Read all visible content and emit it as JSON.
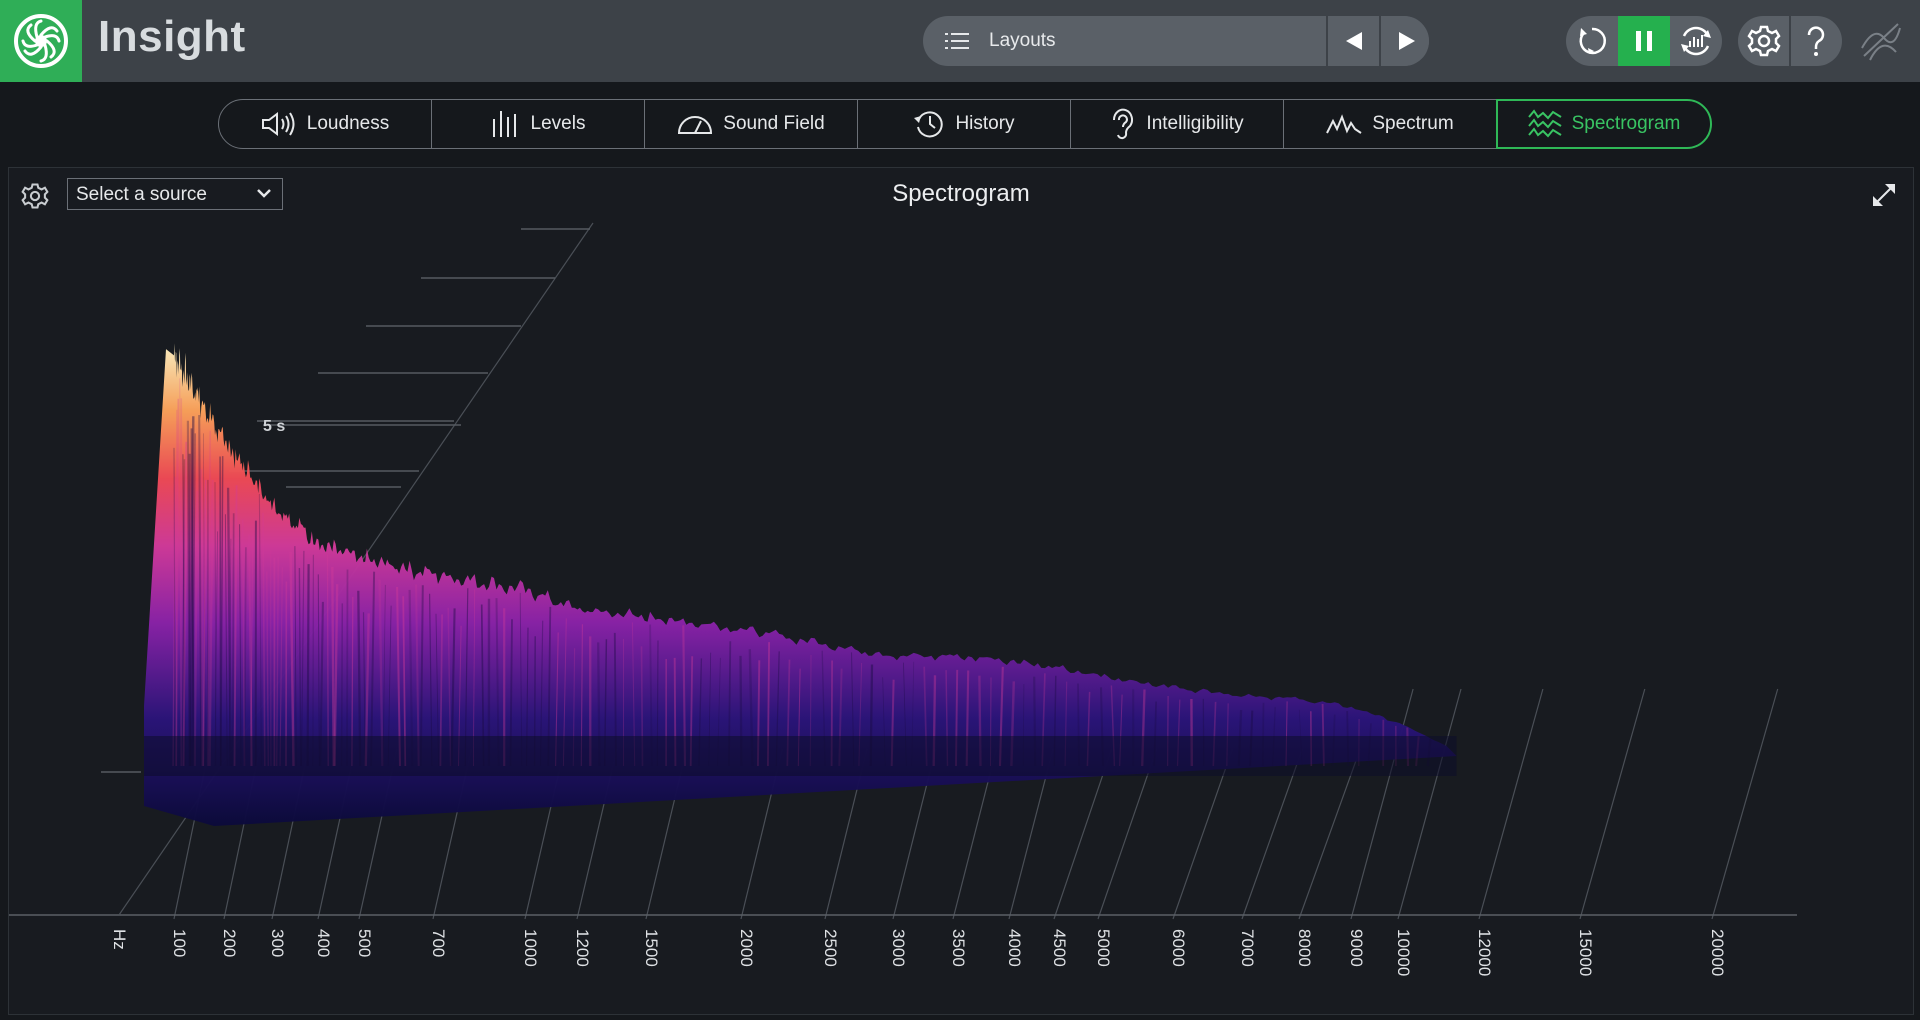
{
  "app": {
    "title": "Insight"
  },
  "layouts": {
    "label": "Layouts"
  },
  "tabs": [
    {
      "id": "loudness",
      "label": "Loudness",
      "icon": "speaker-icon"
    },
    {
      "id": "levels",
      "label": "Levels",
      "icon": "level-bars-icon"
    },
    {
      "id": "sound-field",
      "label": "Sound Field",
      "icon": "semicircle-meter-icon"
    },
    {
      "id": "history",
      "label": "History",
      "icon": "history-clock-icon"
    },
    {
      "id": "intelligibility",
      "label": "Intelligibility",
      "icon": "ear-icon"
    },
    {
      "id": "spectrum",
      "label": "Spectrum",
      "icon": "spectrum-wave-icon"
    },
    {
      "id": "spectrogram",
      "label": "Spectrogram",
      "icon": "spectrogram-wave-icon",
      "active": true
    }
  ],
  "panel": {
    "title": "Spectrogram",
    "source_select": {
      "value": "Select a source"
    }
  },
  "colors": {
    "accent": "#25b04e",
    "topbar": "#3d4248",
    "background": "#15181c"
  },
  "chart_data": {
    "type": "3d-spectrogram",
    "title": "Spectrogram",
    "x_unit_label": "Hz",
    "x_ticks": [
      100,
      200,
      300,
      400,
      500,
      700,
      1000,
      1200,
      1500,
      2000,
      2500,
      3000,
      3500,
      4000,
      4500,
      5000,
      6000,
      7000,
      8000,
      9000,
      10000,
      12000,
      15000,
      20000
    ],
    "time_axis_label": "5 s",
    "grid": true,
    "series": [
      {
        "x": [
          100,
          200,
          300,
          400,
          500,
          700,
          1000,
          1200,
          1500,
          2000,
          2500,
          3000,
          3500,
          4000,
          4500,
          5000,
          6000,
          7000,
          8000,
          9000,
          10000
        ],
        "relative_level": [
          1.0,
          0.78,
          0.62,
          0.52,
          0.48,
          0.44,
          0.4,
          0.35,
          0.33,
          0.3,
          0.26,
          0.23,
          0.23,
          0.22,
          0.2,
          0.18,
          0.15,
          0.13,
          0.12,
          0.1,
          0.06
        ]
      }
    ]
  }
}
